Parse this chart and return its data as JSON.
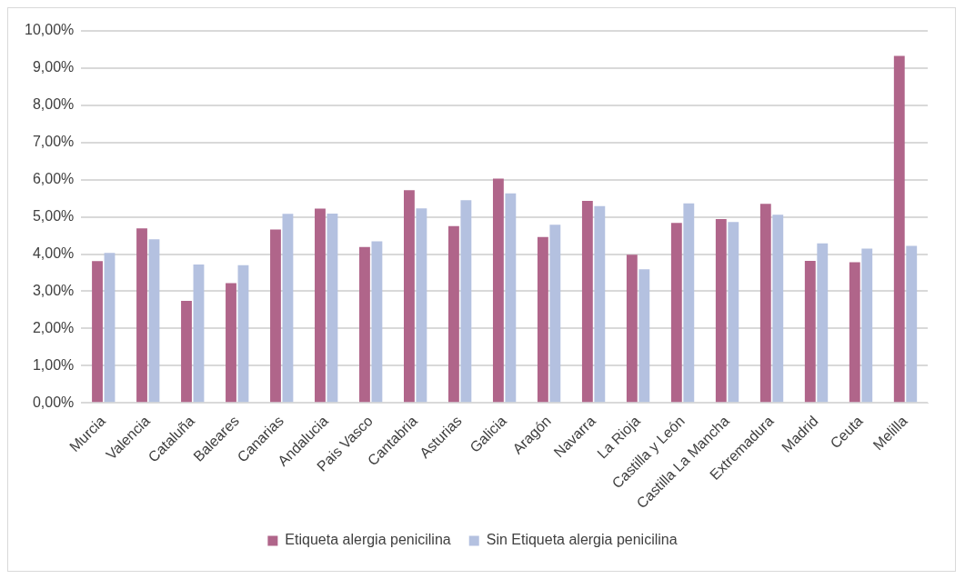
{
  "chart_data": {
    "type": "bar",
    "categories": [
      "Murcia",
      "Valencia",
      "Cataluña",
      "Baleares",
      "Canarias",
      "Andalucia",
      "Pais Vasco",
      "Cantabria",
      "Asturias",
      "Galicia",
      "Aragón",
      "Navarra",
      "La Rioja",
      "Castilla y León",
      "Castilla La Mancha",
      "Extremadura",
      "Madrid",
      "Ceuta",
      "Melilla"
    ],
    "series": [
      {
        "name": "Etiqueta alergia penicilina",
        "color": "#b0658a",
        "values": [
          3.81,
          4.69,
          2.74,
          3.22,
          4.66,
          5.22,
          4.19,
          5.72,
          4.75,
          6.03,
          4.46,
          5.43,
          3.98,
          4.84,
          4.94,
          5.35,
          3.82,
          3.78,
          9.33
        ]
      },
      {
        "name": "Sin Etiqueta alergia penicilina",
        "color": "#b4c1e0",
        "values": [
          4.03,
          4.4,
          3.72,
          3.7,
          5.08,
          5.09,
          4.34,
          5.23,
          5.45,
          5.63,
          4.79,
          5.29,
          3.59,
          5.36,
          4.86,
          5.06,
          4.29,
          4.15,
          4.22
        ]
      }
    ],
    "ylim": [
      0,
      10
    ],
    "yticks": [
      {
        "value": 0,
        "label": "0,00%"
      },
      {
        "value": 1,
        "label": "1,00%"
      },
      {
        "value": 2,
        "label": "2,00%"
      },
      {
        "value": 3,
        "label": "3,00%"
      },
      {
        "value": 4,
        "label": "4,00%"
      },
      {
        "value": 5,
        "label": "5,00%"
      },
      {
        "value": 6,
        "label": "6,00%"
      },
      {
        "value": 7,
        "label": "7,00%"
      },
      {
        "value": 8,
        "label": "8,00%"
      },
      {
        "value": 9,
        "label": "9,00%"
      },
      {
        "value": 10,
        "label": "10,00%"
      }
    ],
    "grid": "y",
    "legend": "bottom"
  }
}
